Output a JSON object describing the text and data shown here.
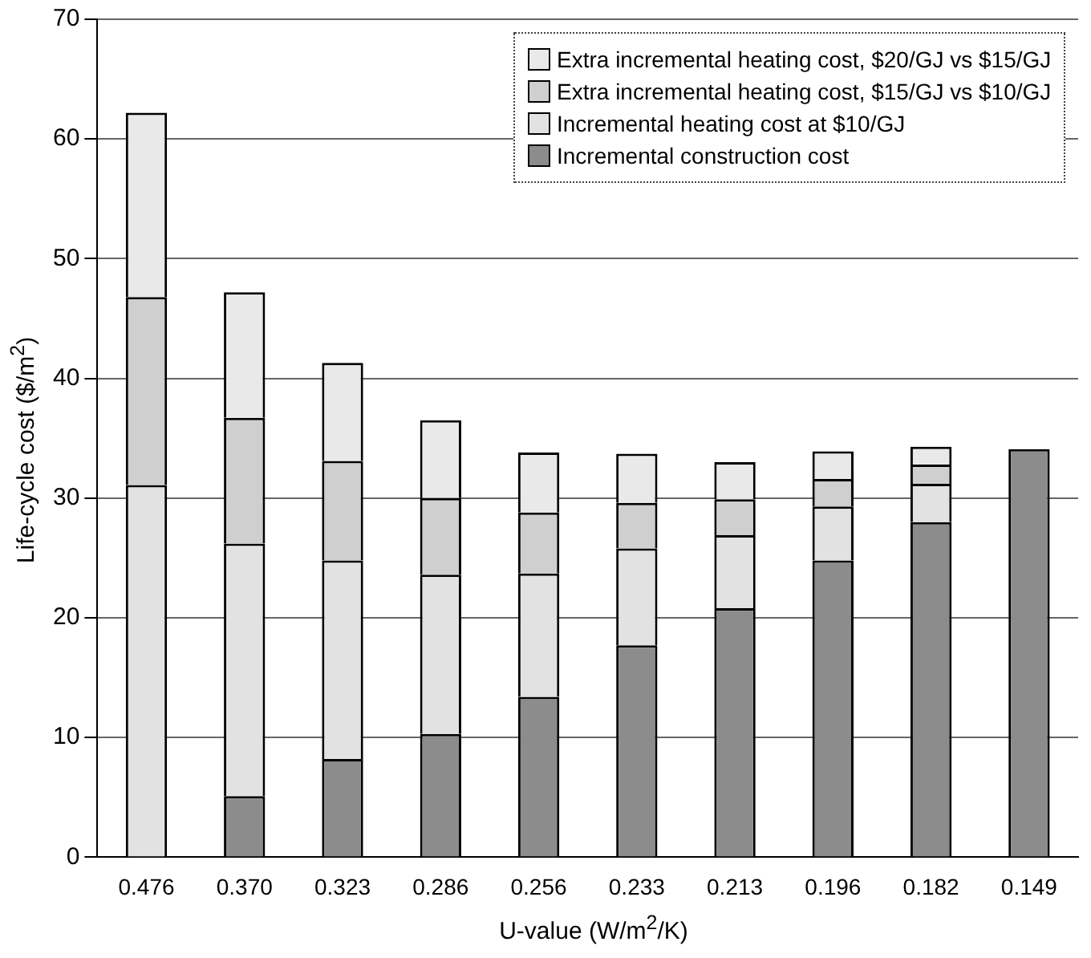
{
  "chart_data": {
    "type": "bar",
    "stacked": true,
    "xlabel": "U-value (W/m$^{2}$/K)",
    "ylabel": "Life-cycle cost ($/m$^{2}$)",
    "categories": [
      "0.476",
      "0.370",
      "0.323",
      "0.286",
      "0.256",
      "0.233",
      "0.213",
      "0.196",
      "0.182",
      "0.149"
    ],
    "series": [
      {
        "name": "Incremental construction cost",
        "color": "#8c8c8c",
        "values": [
          0,
          5.1,
          8.2,
          10.3,
          13.4,
          17.7,
          20.8,
          24.8,
          28.0,
          34.1
        ]
      },
      {
        "name": "Incremental heating cost at $10/GJ",
        "color": "#e2e2e2",
        "values": [
          31.1,
          21.1,
          16.6,
          13.3,
          10.3,
          8.1,
          6.1,
          4.5,
          3.2,
          0
        ]
      },
      {
        "name": "Extra incremental heating cost, $15/GJ vs $10/GJ",
        "color": "#cfcfcf",
        "values": [
          15.7,
          10.5,
          8.3,
          6.4,
          5.1,
          3.8,
          3.0,
          2.3,
          1.6,
          0
        ]
      },
      {
        "name": "Extra incremental heating cost, $20/GJ vs $15/GJ",
        "color": "#e9e9e9",
        "values": [
          15.4,
          10.5,
          8.2,
          6.5,
          5.0,
          4.1,
          3.1,
          2.3,
          1.5,
          0
        ]
      }
    ],
    "ylim": [
      0,
      70
    ],
    "yticks": [
      0,
      10,
      20,
      30,
      40,
      50,
      60,
      70
    ],
    "grid": "y",
    "legend": "top right"
  }
}
